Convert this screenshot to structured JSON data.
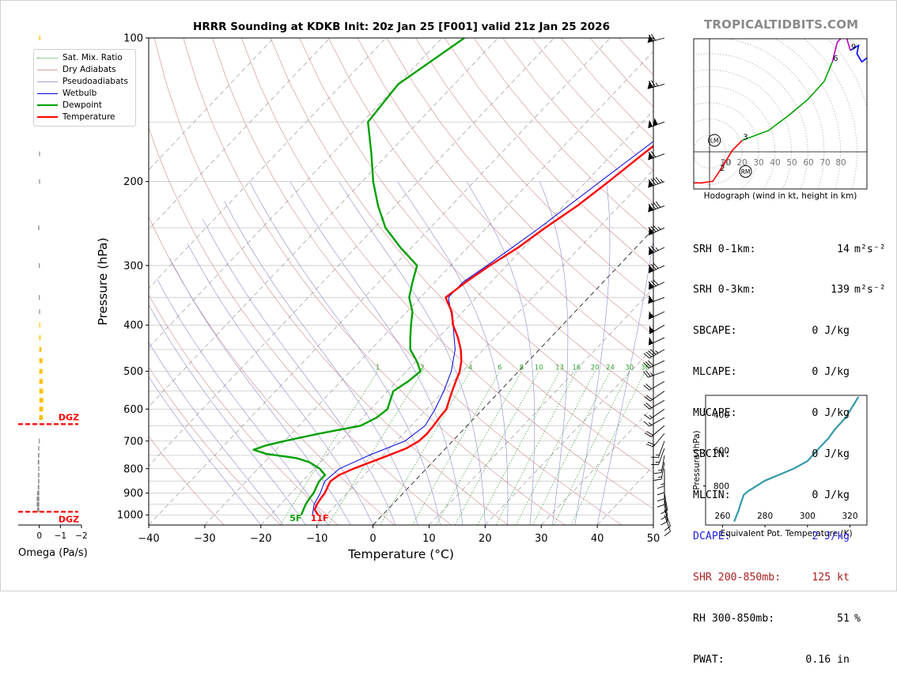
{
  "title": "HRRR Sounding at KDKB Init: 20z Jan 25 [F001] valid 21z Jan 25 2026",
  "site_credit": "TROPICALTIDBITS.COM",
  "chart_data": [
    {
      "type": "line",
      "name": "skew-t",
      "xlabel": "Temperature (°C)",
      "ylabel": "Pressure (hPa)",
      "xlim": [
        -40,
        50
      ],
      "ylim": [
        1050,
        100
      ],
      "y_scale": "log",
      "xticks": [
        -40,
        -30,
        -20,
        -10,
        0,
        10,
        20,
        30,
        40,
        50
      ],
      "yticks": [
        100,
        200,
        300,
        400,
        500,
        600,
        700,
        800,
        900,
        1000
      ],
      "legend": {
        "placement": "top-left",
        "entries": [
          "Sat. Mix. Ratio",
          "Dry Adiabats",
          "Pseudoadiabats",
          "Wetbulb",
          "Dewpoint",
          "Temperature"
        ]
      },
      "colors": {
        "temperature": "#ff0000",
        "dewpoint": "#00a000",
        "wetbulb": "#0000dd",
        "dry_adiabats": "#d08080",
        "pseudoadiabats": "#8080d0",
        "mixing_ratio": "#30a030"
      },
      "mixing_ratio_labels": [
        "1",
        "2",
        "4",
        "6",
        "8",
        "10",
        "13",
        "16",
        "20",
        "24",
        "30",
        "36"
      ],
      "surface_temp_label": "11F",
      "surface_dewpoint_label": "5F",
      "series": [
        {
          "name": "Temperature",
          "pressure": [
            1000,
            975,
            950,
            925,
            900,
            875,
            850,
            825,
            800,
            775,
            750,
            725,
            700,
            675,
            650,
            625,
            600,
            575,
            550,
            525,
            500,
            475,
            450,
            425,
            400,
            375,
            350,
            325,
            300,
            275,
            250,
            225,
            200,
            175,
            150,
            125,
            100
          ],
          "temp_c": [
            -11.5,
            -13,
            -13.5,
            -13.8,
            -14,
            -14.5,
            -15,
            -14.5,
            -13,
            -11,
            -9,
            -7,
            -6,
            -5.8,
            -6,
            -6.3,
            -6.5,
            -7.5,
            -8.5,
            -9.5,
            -10.5,
            -12,
            -14,
            -16.5,
            -19.5,
            -22,
            -25.5,
            -24.5,
            -23,
            -21,
            -19.5,
            -17.5,
            -16,
            -14.5,
            -12.5,
            -12.5,
            -11.5
          ]
        },
        {
          "name": "Dewpoint",
          "pressure": [
            1000,
            975,
            950,
            925,
            900,
            875,
            850,
            825,
            800,
            775,
            760,
            745,
            730,
            715,
            700,
            675,
            650,
            625,
            600,
            575,
            550,
            525,
            500,
            475,
            450,
            425,
            400,
            375,
            350,
            325,
            300,
            275,
            250,
            225,
            200,
            175,
            150,
            125,
            100
          ],
          "temp_c": [
            -14.5,
            -15,
            -15.5,
            -15.8,
            -16,
            -16.5,
            -17,
            -17,
            -19,
            -22,
            -25,
            -31,
            -34,
            -32.5,
            -30,
            -25,
            -19,
            -17.5,
            -17,
            -18,
            -19,
            -18,
            -17.5,
            -20,
            -23,
            -25,
            -27,
            -29,
            -32,
            -34,
            -36,
            -42,
            -48,
            -53,
            -58,
            -63,
            -69,
            -70,
            -66
          ]
        },
        {
          "name": "Wetbulb",
          "pressure": [
            1000,
            950,
            900,
            850,
            800,
            750,
            700,
            650,
            600,
            550,
            500,
            450,
            400,
            350,
            325,
            300,
            250,
            200,
            150,
            100
          ],
          "temp_c": [
            -12.5,
            -14,
            -14.8,
            -16,
            -15.5,
            -12.5,
            -8.5,
            -7.5,
            -8.5,
            -10,
            -12,
            -15,
            -19.5,
            -25,
            -25,
            -23.5,
            -20.5,
            -17.5,
            -13.5,
            -12
          ]
        }
      ]
    },
    {
      "type": "bar",
      "name": "omega-profile",
      "xlabel": "Omega (Pa/s)",
      "xlim": [
        1,
        -2
      ],
      "xticks": [
        0,
        -1,
        -2
      ],
      "annotations": [
        "DGZ",
        "DGZ"
      ],
      "dgz_pressure": [
        645,
        985
      ],
      "pressure": [
        100,
        130,
        150,
        175,
        200,
        250,
        300,
        350,
        375,
        400,
        425,
        450,
        475,
        500,
        525,
        550,
        575,
        600,
        625,
        700,
        725,
        750,
        775,
        800,
        825,
        850,
        875,
        900,
        925,
        950,
        975
      ],
      "omega": [
        -0.05,
        -0.08,
        -0.01,
        0.01,
        0.01,
        0.05,
        0.02,
        0.02,
        0.01,
        -0.04,
        -0.06,
        -0.1,
        -0.15,
        -0.15,
        -0.17,
        -0.18,
        -0.19,
        -0.18,
        -0.17,
        0.02,
        0.05,
        0.06,
        0.07,
        0.05,
        0.06,
        0.06,
        0.07,
        0.1,
        0.12,
        0.12,
        0.11
      ],
      "colors": {
        "negative": "#ffc000",
        "positive": "#8a8a8a",
        "dgz": "#ff0000"
      }
    },
    {
      "type": "line",
      "name": "hodograph",
      "caption": "Hodograph (wind in kt, height in km)",
      "ring_labels": [
        "10",
        "20",
        "20",
        "30",
        "40",
        "50",
        "60",
        "70",
        "80"
      ],
      "ring_values": [
        10,
        20,
        30,
        40,
        50,
        60,
        70,
        80
      ],
      "height_labels": [
        "1",
        "2",
        "3",
        "6",
        "9"
      ],
      "markers": [
        "LM",
        "RM"
      ],
      "u_kt": [
        -10,
        -5,
        2,
        6,
        14,
        20,
        36,
        48,
        60,
        70,
        75,
        78,
        83,
        86,
        91,
        90,
        93,
        97
      ],
      "v_kt": [
        -19,
        -19,
        -18,
        -12,
        1,
        7,
        13,
        22,
        32,
        43,
        55,
        67,
        72,
        62,
        65,
        60,
        55,
        58
      ],
      "colors": {
        "0-3km": "#ff0000",
        "3-6km": "#00a000",
        "6-9km": "#c000c0",
        "9+km": "#0000ff"
      }
    },
    {
      "type": "line",
      "name": "theta-e-profile",
      "xlabel": "Equivalent Pot. Temperature (K)",
      "ylabel": "Pressure (hPa)",
      "xlim": [
        252,
        328
      ],
      "ylim": [
        1020,
        290
      ],
      "xticks": [
        260,
        280,
        300,
        320
      ],
      "yticks": [
        400,
        600,
        800
      ],
      "x": [
        265.5,
        266,
        266.8,
        267.5,
        268.5,
        270,
        272,
        276,
        280,
        286,
        290,
        294,
        300,
        306,
        310,
        313,
        318,
        324
      ],
      "y": [
        1000,
        985,
        960,
        940,
        900,
        850,
        830,
        800,
        770,
        740,
        720,
        700,
        660,
        580,
        530,
        480,
        415,
        298
      ],
      "line_color": "#3399aa"
    }
  ],
  "params": [
    {
      "label": "SRH 0-1km:",
      "value": "14",
      "unit": "m²s⁻²",
      "color": "#000000"
    },
    {
      "label": "SRH 0-3km:",
      "value": "139",
      "unit": "m²s⁻²",
      "color": "#000000"
    },
    {
      "label": "SBCAPE:",
      "value": "0 J/kg",
      "unit": "",
      "color": "#000000"
    },
    {
      "label": "MLCAPE:",
      "value": "0 J/kg",
      "unit": "",
      "color": "#000000"
    },
    {
      "label": "MUCAPE:",
      "value": "0 J/kg",
      "unit": "",
      "color": "#000000"
    },
    {
      "label": "SBCIN:",
      "value": "0 J/kg",
      "unit": "",
      "color": "#000000"
    },
    {
      "label": "MLCIN:",
      "value": "0 J/kg",
      "unit": "",
      "color": "#000000"
    },
    {
      "label": "DCAPE:",
      "value": "2 J/kg",
      "unit": "",
      "color": "#2222dd"
    },
    {
      "label": "SHR 200-850mb:",
      "value": "125 kt",
      "unit": "",
      "color": "#aa2222"
    },
    {
      "label": "RH 300-850mb:",
      "value": "51",
      "unit": "%",
      "color": "#000000"
    },
    {
      "label": "PWAT:",
      "value": "0.16 in",
      "unit": "",
      "color": "#000000"
    }
  ],
  "wind_barbs": {
    "pressure": [
      100,
      125,
      150,
      175,
      200,
      225,
      250,
      275,
      300,
      325,
      350,
      375,
      400,
      425,
      450,
      475,
      500,
      525,
      550,
      575,
      600,
      625,
      650,
      675,
      700,
      725,
      750,
      775,
      800,
      825,
      850,
      875,
      900,
      925,
      950,
      975,
      1000
    ],
    "speed_kt": [
      70,
      75,
      100,
      70,
      95,
      90,
      85,
      75,
      80,
      80,
      60,
      55,
      55,
      50,
      45,
      30,
      25,
      20,
      20,
      20,
      15,
      15,
      20,
      20,
      15,
      15,
      15,
      15,
      15,
      10,
      10,
      10,
      10,
      10,
      10,
      10,
      10
    ],
    "dir_deg": [
      255,
      255,
      250,
      250,
      250,
      250,
      245,
      245,
      245,
      245,
      250,
      245,
      240,
      245,
      240,
      245,
      250,
      240,
      235,
      240,
      235,
      240,
      230,
      220,
      200,
      200,
      190,
      190,
      180,
      180,
      180,
      180,
      170,
      170,
      170,
      160,
      160
    ]
  }
}
